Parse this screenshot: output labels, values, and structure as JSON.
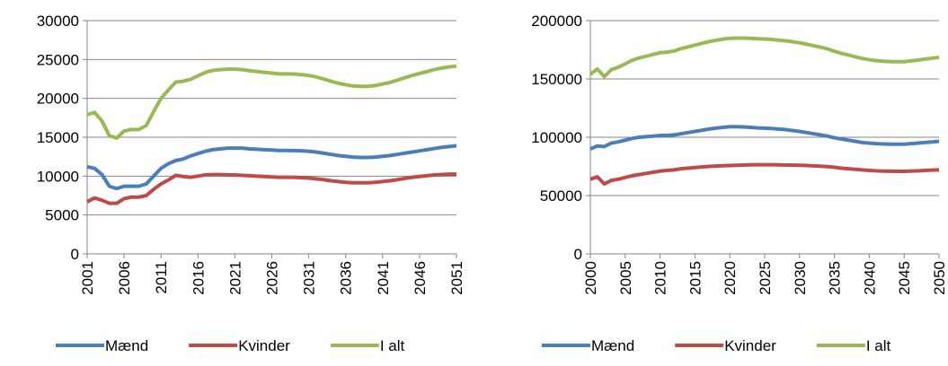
{
  "chart_data": [
    {
      "type": "line",
      "grid": true,
      "legend": "bottom",
      "x": [
        2001,
        2002,
        2003,
        2004,
        2005,
        2006,
        2007,
        2008,
        2009,
        2010,
        2011,
        2012,
        2013,
        2014,
        2015,
        2016,
        2017,
        2018,
        2019,
        2020,
        2021,
        2022,
        2023,
        2024,
        2025,
        2026,
        2027,
        2028,
        2029,
        2030,
        2031,
        2032,
        2033,
        2034,
        2035,
        2036,
        2037,
        2038,
        2039,
        2040,
        2041,
        2042,
        2043,
        2044,
        2045,
        2046,
        2047,
        2048,
        2049,
        2050,
        2051
      ],
      "xlim": [
        2001,
        2051
      ],
      "xticks": [
        2001,
        2006,
        2011,
        2016,
        2021,
        2026,
        2031,
        2036,
        2041,
        2046,
        2051
      ],
      "ylim": [
        0,
        30000
      ],
      "yticks": [
        0,
        5000,
        10000,
        15000,
        20000,
        25000,
        30000
      ],
      "series": [
        {
          "name": "Mænd",
          "color": "#4a7ebb",
          "values": [
            11200,
            11000,
            10200,
            8700,
            8400,
            8700,
            8700,
            8700,
            9000,
            10000,
            11000,
            11600,
            12000,
            12200,
            12600,
            12900,
            13200,
            13400,
            13500,
            13600,
            13600,
            13600,
            13500,
            13450,
            13400,
            13350,
            13300,
            13300,
            13280,
            13250,
            13200,
            13100,
            12950,
            12800,
            12650,
            12550,
            12450,
            12400,
            12400,
            12450,
            12550,
            12650,
            12800,
            12950,
            13100,
            13250,
            13400,
            13550,
            13700,
            13800,
            13900
          ]
        },
        {
          "name": "Kvinder",
          "color": "#be4b48",
          "values": [
            6700,
            7200,
            6900,
            6500,
            6500,
            7100,
            7300,
            7300,
            7500,
            8300,
            9000,
            9500,
            10100,
            9950,
            9850,
            10000,
            10150,
            10200,
            10200,
            10150,
            10150,
            10100,
            10050,
            10000,
            9950,
            9900,
            9850,
            9850,
            9850,
            9800,
            9750,
            9650,
            9550,
            9400,
            9300,
            9200,
            9150,
            9150,
            9150,
            9200,
            9300,
            9400,
            9550,
            9700,
            9850,
            9950,
            10050,
            10150,
            10200,
            10250,
            10250
          ]
        },
        {
          "name": "I alt",
          "color": "#98b954",
          "values": [
            17900,
            18200,
            17100,
            15200,
            14900,
            15800,
            16000,
            16000,
            16500,
            18300,
            20000,
            21100,
            22100,
            22200,
            22450,
            22900,
            23350,
            23600,
            23700,
            23750,
            23750,
            23700,
            23550,
            23450,
            23350,
            23250,
            23150,
            23150,
            23130,
            23050,
            22950,
            22750,
            22500,
            22200,
            21950,
            21750,
            21600,
            21550,
            21550,
            21650,
            21850,
            22050,
            22350,
            22650,
            22950,
            23200,
            23450,
            23700,
            23900,
            24050,
            24150
          ]
        }
      ]
    },
    {
      "type": "line",
      "grid": true,
      "legend": "bottom",
      "x": [
        2000,
        2001,
        2002,
        2003,
        2004,
        2005,
        2006,
        2007,
        2008,
        2009,
        2010,
        2011,
        2012,
        2013,
        2014,
        2015,
        2016,
        2017,
        2018,
        2019,
        2020,
        2021,
        2022,
        2023,
        2024,
        2025,
        2026,
        2027,
        2028,
        2029,
        2030,
        2031,
        2032,
        2033,
        2034,
        2035,
        2036,
        2037,
        2038,
        2039,
        2040,
        2041,
        2042,
        2043,
        2044,
        2045,
        2046,
        2047,
        2048,
        2049,
        2050
      ],
      "xlim": [
        2000,
        2050
      ],
      "xticks": [
        2000,
        2005,
        2010,
        2015,
        2020,
        2025,
        2030,
        2035,
        2040,
        2045,
        2050
      ],
      "ylim": [
        0,
        200000
      ],
      "yticks": [
        0,
        50000,
        100000,
        150000,
        200000
      ],
      "series": [
        {
          "name": "Mænd",
          "color": "#4a7ebb",
          "values": [
            90000,
            92500,
            92000,
            95000,
            96000,
            97500,
            99000,
            100000,
            100500,
            101000,
            101500,
            101500,
            102000,
            103000,
            104000,
            105000,
            106000,
            107000,
            107800,
            108500,
            109000,
            109000,
            108800,
            108500,
            108000,
            107800,
            107500,
            107000,
            106500,
            105800,
            105000,
            104000,
            103000,
            102000,
            101000,
            99500,
            98500,
            97500,
            96500,
            95500,
            95000,
            94500,
            94200,
            94000,
            94000,
            94000,
            94500,
            95000,
            95500,
            96000,
            96500
          ]
        },
        {
          "name": "Kvinder",
          "color": "#be4b48",
          "values": [
            64000,
            66000,
            60000,
            63000,
            64000,
            65500,
            67000,
            68000,
            69000,
            70000,
            71000,
            71500,
            72000,
            73000,
            73500,
            74000,
            74500,
            75000,
            75300,
            75600,
            75800,
            76000,
            76200,
            76300,
            76400,
            76400,
            76400,
            76300,
            76200,
            76100,
            76000,
            75800,
            75500,
            75200,
            74800,
            74200,
            73500,
            73000,
            72500,
            72000,
            71500,
            71200,
            71000,
            70900,
            70800,
            70800,
            71000,
            71200,
            71500,
            71800,
            72000
          ]
        },
        {
          "name": "I alt",
          "color": "#98b954",
          "values": [
            154000,
            158500,
            152000,
            158000,
            160000,
            163000,
            166000,
            168000,
            169500,
            171000,
            172500,
            173000,
            174000,
            176000,
            177500,
            179000,
            180500,
            182000,
            183100,
            184100,
            184800,
            185000,
            185000,
            184800,
            184400,
            184200,
            183900,
            183300,
            182700,
            181900,
            181000,
            179800,
            178500,
            177200,
            175800,
            173700,
            172000,
            170500,
            169000,
            167500,
            166500,
            165700,
            165200,
            164900,
            164800,
            164800,
            165500,
            166200,
            167000,
            167800,
            168500
          ]
        }
      ]
    }
  ]
}
